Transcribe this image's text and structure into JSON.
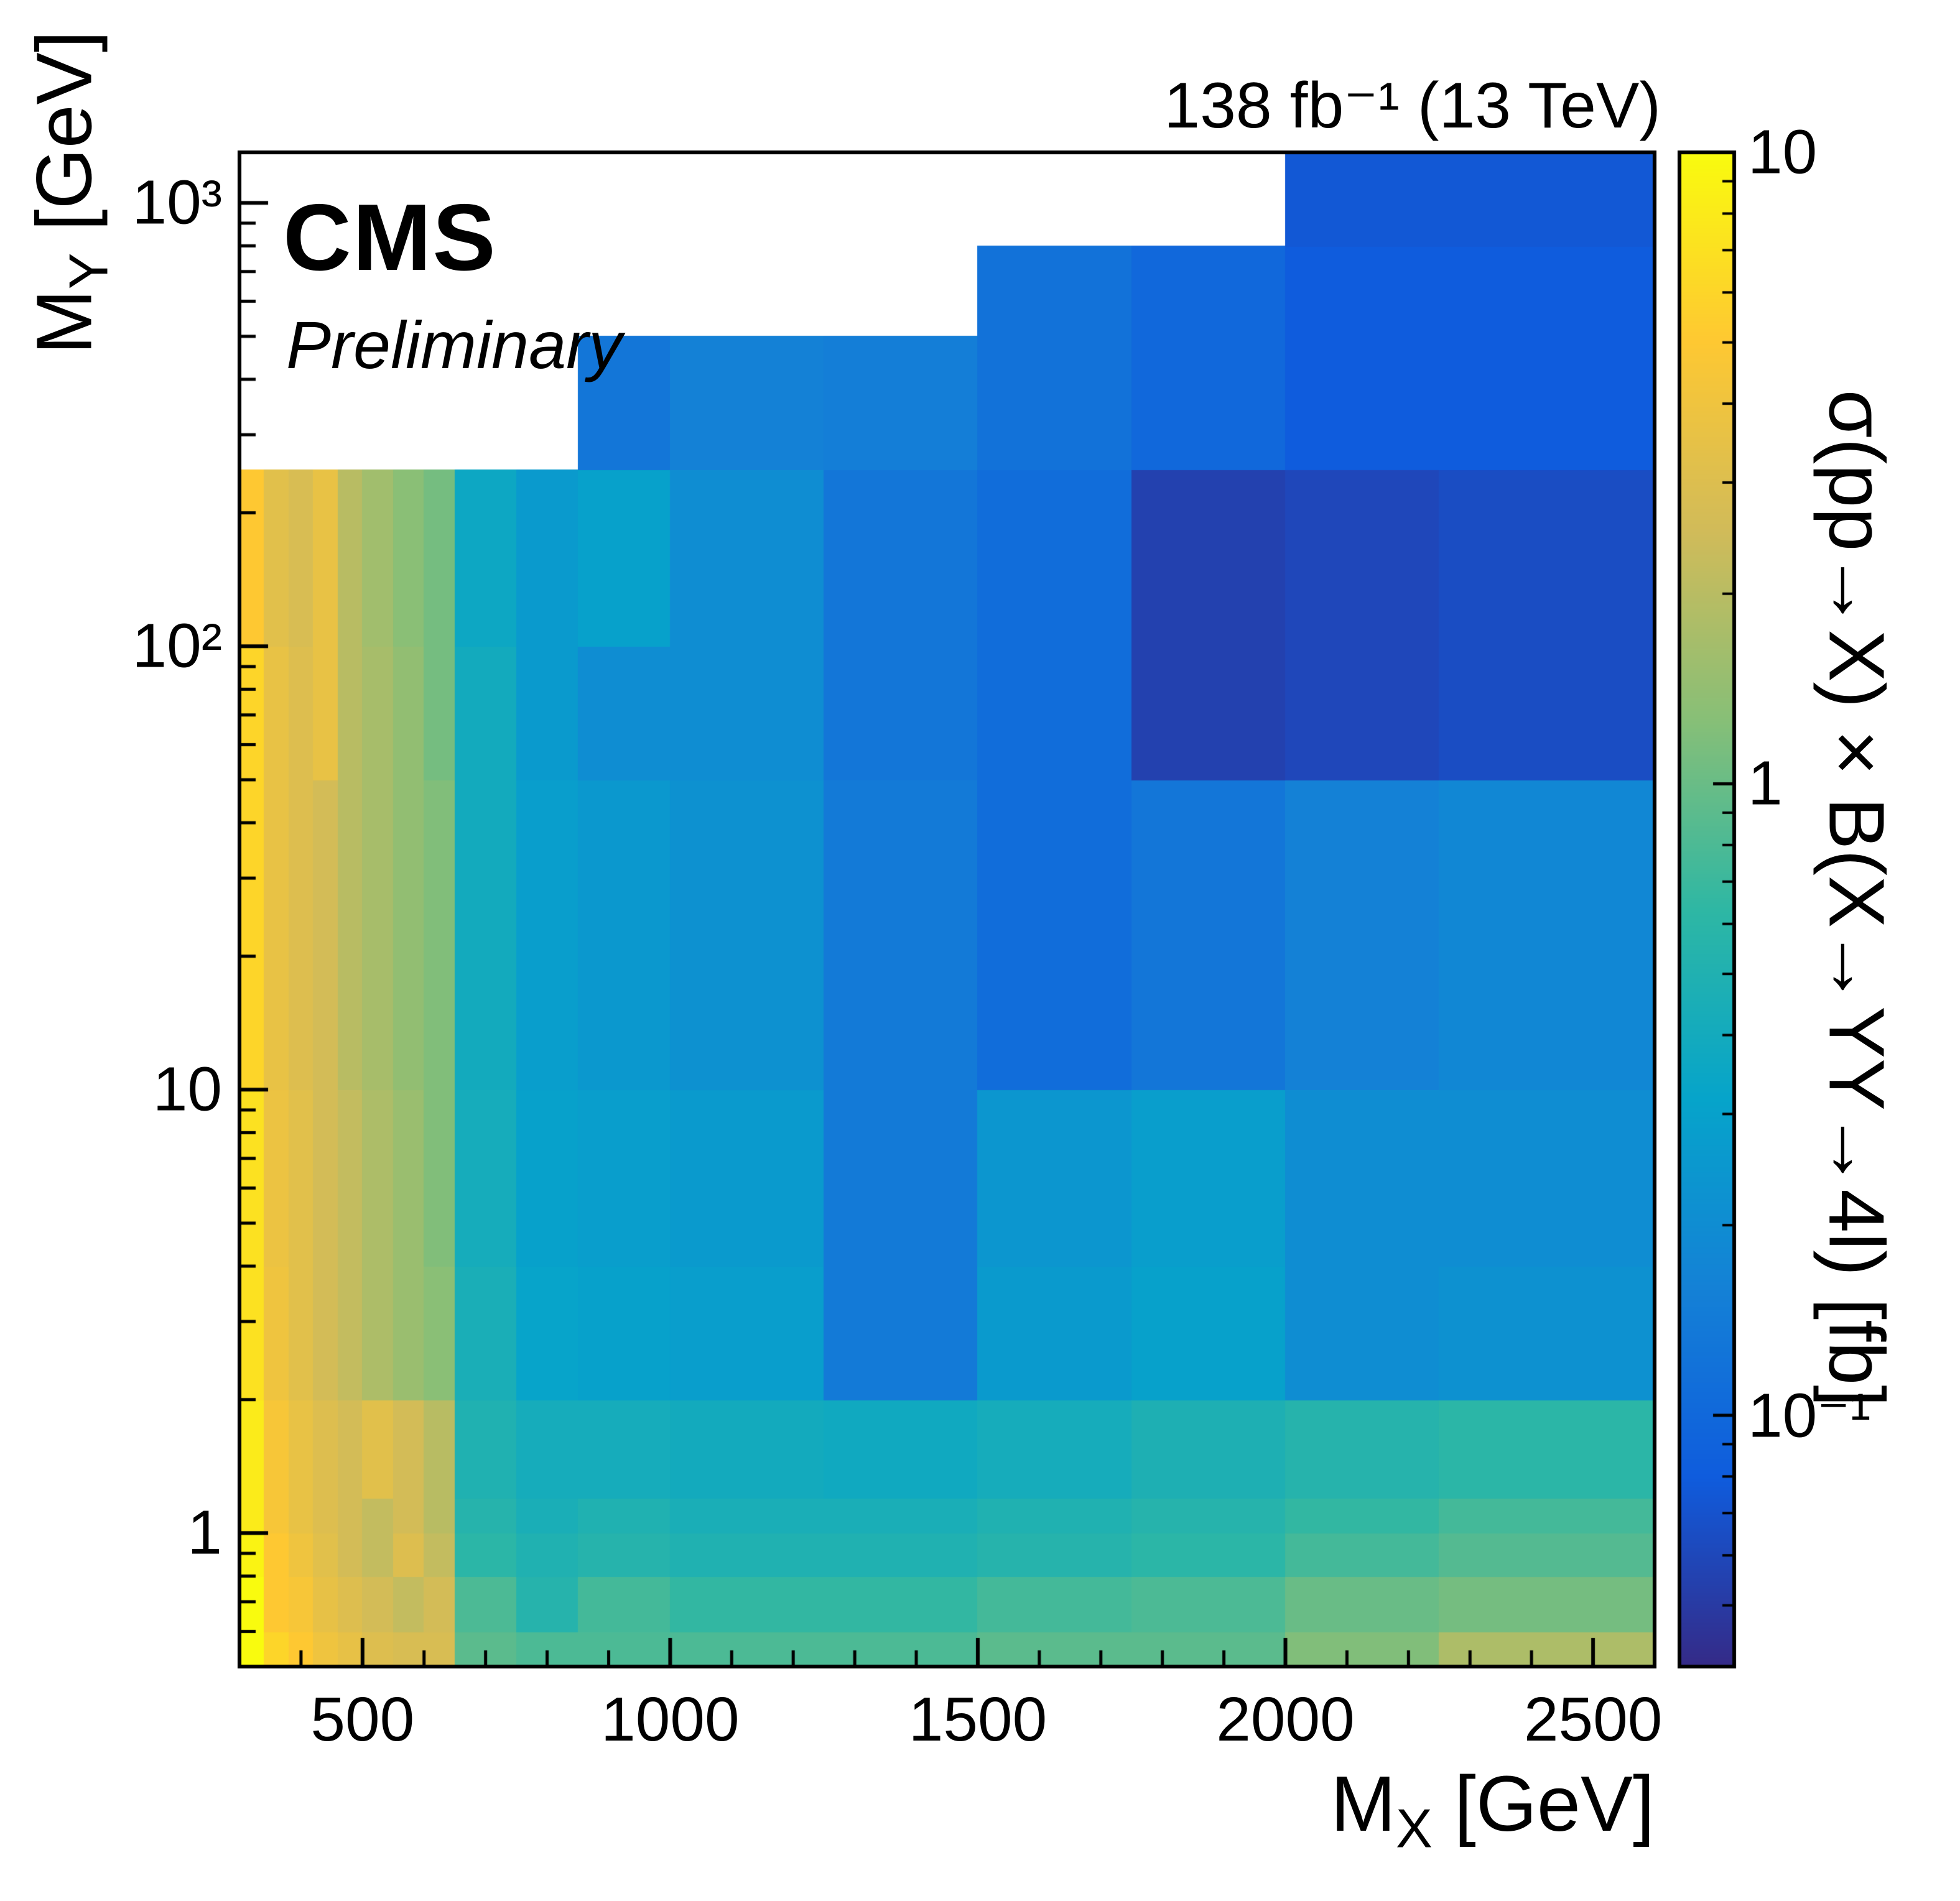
{
  "header": {
    "lumi": "138 fb⁻¹ (13 TeV)"
  },
  "labels": {
    "experiment": "CMS",
    "status": "Preliminary"
  },
  "axes": {
    "x": {
      "title_main": "M",
      "title_sub": "X",
      "title_rest": " [GeV]",
      "range": [
        300,
        2600
      ],
      "scale": "linear",
      "major_ticks": [
        500,
        1000,
        1500,
        2000,
        2500
      ],
      "major_labels": [
        "500",
        "1000",
        "1500",
        "2000",
        "2500"
      ],
      "minor_ticks": [
        400,
        600,
        700,
        800,
        900,
        1100,
        1200,
        1300,
        1400,
        1600,
        1700,
        1800,
        1900,
        2100,
        2200,
        2300,
        2400
      ]
    },
    "y": {
      "title_main": "M",
      "title_sub": "Y",
      "title_rest": " [GeV]",
      "range": [
        0.5,
        1300
      ],
      "scale": "log",
      "major_ticks": [
        1,
        10,
        100,
        1000
      ],
      "major_labels": [
        "1",
        "10",
        "10²",
        "10³"
      ],
      "minor_ticks": [
        0.6,
        0.7,
        0.8,
        0.9,
        2,
        3,
        4,
        5,
        6,
        7,
        8,
        9,
        20,
        30,
        40,
        50,
        60,
        70,
        80,
        90,
        200,
        300,
        400,
        500,
        600,
        700,
        800,
        900
      ]
    },
    "z": {
      "title": "σ(pp→X) × B(X→YY→4l) [fb]",
      "range": [
        0.04,
        10
      ],
      "scale": "log",
      "major_ticks": [
        10,
        1,
        0.1
      ],
      "major_labels": [
        "10",
        "1",
        "10⁻¹"
      ],
      "minor_ticks": [
        0.05,
        0.06,
        0.07,
        0.08,
        0.09,
        0.2,
        0.3,
        0.4,
        0.5,
        0.6,
        0.7,
        0.8,
        0.9,
        2,
        3,
        4,
        5,
        6,
        7,
        8,
        9
      ]
    }
  },
  "chart_data": {
    "type": "heatmap",
    "title": "138 fb⁻¹ (13 TeV)",
    "xlabel": "M_X [GeV]",
    "ylabel": "M_Y [GeV]",
    "zlabel": "σ(pp→X) × B(X→YY→4l) [fb]",
    "xscale": "linear",
    "yscale": "log",
    "zscale": "log",
    "xlim": [
      300,
      2600
    ],
    "ylim": [
      0.5,
      1300
    ],
    "zlim": [
      0.04,
      10
    ],
    "x_edges": [
      300,
      340,
      380,
      420,
      460,
      500,
      550,
      600,
      650,
      750,
      850,
      1000,
      1250,
      1500,
      1750,
      2000,
      2250,
      2600
    ],
    "y_edges": [
      0.5,
      0.6,
      0.8,
      1.0,
      1.2,
      2,
      4,
      10,
      50,
      100,
      250,
      500,
      800,
      1300
    ],
    "values_note": "rows bottom-to-top (increasing M_Y), columns left-to-right (increasing M_X), units fb, null = excluded (kinematically empty) region",
    "values": [
      [
        10,
        6,
        5,
        4,
        3.5,
        3,
        2.8,
        2.8,
        0.9,
        0.8,
        0.8,
        0.8,
        0.8,
        0.9,
        0.9,
        1.2,
        1.8
      ],
      [
        10,
        5,
        4.5,
        3.5,
        3,
        2.6,
        2.2,
        2.6,
        0.8,
        0.55,
        0.75,
        0.65,
        0.65,
        0.75,
        0.8,
        1.0,
        1.1
      ],
      [
        9,
        5,
        4,
        3.2,
        2.6,
        2.2,
        3.0,
        2.2,
        0.6,
        0.5,
        0.55,
        0.5,
        0.5,
        0.55,
        0.6,
        0.75,
        0.85
      ],
      [
        8,
        4.5,
        3.6,
        3.0,
        2.6,
        2.2,
        2.6,
        2.0,
        0.55,
        0.45,
        0.5,
        0.45,
        0.45,
        0.5,
        0.55,
        0.65,
        0.75
      ],
      [
        8,
        4.5,
        3.6,
        3.0,
        2.6,
        3.2,
        2.6,
        2.0,
        0.5,
        0.42,
        0.42,
        0.4,
        0.38,
        0.42,
        0.48,
        0.55,
        0.6
      ],
      [
        7,
        4,
        3.2,
        2.6,
        2.2,
        1.8,
        1.5,
        1.3,
        0.45,
        0.32,
        0.3,
        0.28,
        0.14,
        0.26,
        0.3,
        0.2,
        0.22
      ],
      [
        7,
        3.8,
        3.2,
        2.6,
        2.2,
        1.8,
        1.5,
        1.2,
        0.42,
        0.3,
        0.28,
        0.26,
        0.14,
        0.24,
        0.28,
        0.2,
        0.2
      ],
      [
        6,
        3.6,
        3.0,
        2.6,
        2.0,
        1.7,
        1.4,
        1.2,
        0.4,
        0.28,
        0.25,
        0.22,
        0.14,
        0.11,
        0.13,
        0.16,
        0.18
      ],
      [
        6,
        3.6,
        3.0,
        3.6,
        2.0,
        1.7,
        1.4,
        1.1,
        0.4,
        0.26,
        0.2,
        0.2,
        0.13,
        0.11,
        0.055,
        0.06,
        0.065
      ],
      [
        5,
        3.2,
        2.8,
        3.6,
        2.0,
        1.6,
        1.3,
        1.1,
        0.36,
        0.26,
        0.3,
        0.2,
        0.13,
        0.11,
        0.055,
        0.06,
        0.065
      ],
      [
        null,
        null,
        null,
        null,
        null,
        null,
        null,
        null,
        null,
        null,
        0.13,
        0.16,
        0.15,
        0.12,
        0.1,
        0.08,
        0.08
      ],
      [
        null,
        null,
        null,
        null,
        null,
        null,
        null,
        null,
        null,
        null,
        null,
        null,
        null,
        0.12,
        0.1,
        0.08,
        0.08
      ],
      [
        null,
        null,
        null,
        null,
        null,
        null,
        null,
        null,
        null,
        null,
        null,
        null,
        null,
        null,
        null,
        0.075,
        0.075
      ]
    ],
    "colormap": {
      "name": "root-kBird",
      "colors": [
        "#352A87",
        "#0F5CDD",
        "#1481D6",
        "#06A4CA",
        "#2EB7A4",
        "#87BF77",
        "#D1BB59",
        "#FEC832",
        "#F9FB0E"
      ]
    },
    "legend_position": "right-colorbar",
    "grid": false
  }
}
